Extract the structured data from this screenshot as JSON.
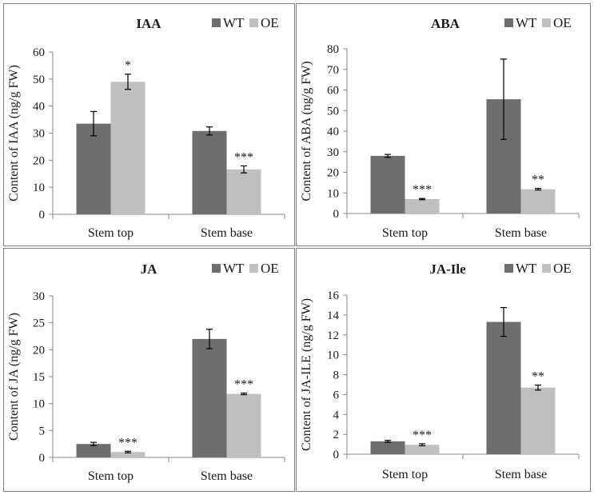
{
  "colors": {
    "wt": "#6e6e6e",
    "oe": "#c0c0c0",
    "axis": "#8a8a8a",
    "text": "#1a1a1a",
    "border": "#808080"
  },
  "chart_data": [
    {
      "id": "iaa",
      "type": "bar",
      "title": "IAA",
      "ylabel": "Content of IAA (ng/g FW)",
      "xlabel": "",
      "categories": [
        "Stem top",
        "Stem base"
      ],
      "ylim": [
        0,
        60
      ],
      "yticks": [
        "0",
        "10",
        "20",
        "30",
        "40",
        "50",
        "60"
      ],
      "ytick_values": [
        0,
        10,
        20,
        30,
        40,
        50,
        60
      ],
      "legend_position": "top-right",
      "series": [
        {
          "name": "WT",
          "color": "#6e6e6e",
          "values": [
            33.5,
            30.8
          ],
          "errors": [
            4.5,
            1.5
          ],
          "labels": [
            "",
            ""
          ]
        },
        {
          "name": "OE",
          "color": "#c0c0c0",
          "values": [
            49.0,
            16.6
          ],
          "errors": [
            2.8,
            1.3
          ],
          "labels": [
            "*",
            "***"
          ]
        }
      ]
    },
    {
      "id": "aba",
      "type": "bar",
      "title": "ABA",
      "ylabel": "Content of ABA (ng/g FW)",
      "xlabel": "",
      "categories": [
        "Stem top",
        "Stem base"
      ],
      "ylim": [
        0,
        80
      ],
      "yticks": [
        "0",
        "10",
        "20",
        "30",
        "40",
        "50",
        "60",
        "70",
        "80"
      ],
      "ytick_values": [
        0,
        10,
        20,
        30,
        40,
        50,
        60,
        70,
        80
      ],
      "legend_position": "top-right",
      "series": [
        {
          "name": "WT",
          "color": "#6e6e6e",
          "values": [
            28.0,
            55.5
          ],
          "errors": [
            0.7,
            19.5
          ],
          "labels": [
            "",
            ""
          ]
        },
        {
          "name": "OE",
          "color": "#c0c0c0",
          "values": [
            7.0,
            11.8
          ],
          "errors": [
            0.3,
            0.4
          ],
          "labels": [
            "***",
            "**"
          ]
        }
      ]
    },
    {
      "id": "ja",
      "type": "bar",
      "title": "JA",
      "ylabel": "Content of JA (ng/g FW)",
      "xlabel": "",
      "categories": [
        "Stem top",
        "Stem base"
      ],
      "ylim": [
        0,
        30
      ],
      "yticks": [
        "0",
        "5",
        "10",
        "15",
        "20",
        "25",
        "30"
      ],
      "ytick_values": [
        0,
        5,
        10,
        15,
        20,
        25,
        30
      ],
      "legend_position": "top-right",
      "series": [
        {
          "name": "WT",
          "color": "#6e6e6e",
          "values": [
            2.5,
            22.0
          ],
          "errors": [
            0.3,
            1.8
          ],
          "labels": [
            "",
            ""
          ]
        },
        {
          "name": "OE",
          "color": "#c0c0c0",
          "values": [
            1.0,
            11.8
          ],
          "errors": [
            0.15,
            0.15
          ],
          "labels": [
            "***",
            "***"
          ]
        }
      ]
    },
    {
      "id": "jaile",
      "type": "bar",
      "title": "JA-Ile",
      "ylabel": "Content of JA-ILE (ng/g FW)",
      "xlabel": "",
      "categories": [
        "Stem top",
        "Stem base"
      ],
      "ylim": [
        0,
        16
      ],
      "yticks": [
        "0",
        "2",
        "4",
        "6",
        "8",
        "10",
        "12",
        "14",
        "16"
      ],
      "ytick_values": [
        0,
        2,
        4,
        6,
        8,
        10,
        12,
        14,
        16
      ],
      "legend_position": "top-right",
      "series": [
        {
          "name": "WT",
          "color": "#6e6e6e",
          "values": [
            1.3,
            13.3
          ],
          "errors": [
            0.1,
            1.45
          ],
          "labels": [
            "",
            ""
          ]
        },
        {
          "name": "OE",
          "color": "#c0c0c0",
          "values": [
            0.95,
            6.7
          ],
          "errors": [
            0.1,
            0.25
          ],
          "labels": [
            "***",
            "**"
          ]
        }
      ]
    }
  ]
}
